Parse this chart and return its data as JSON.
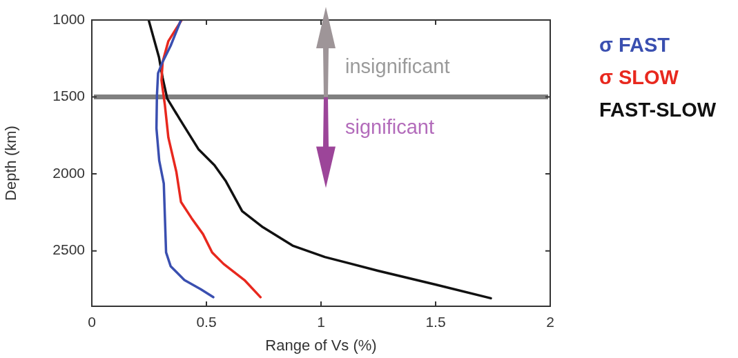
{
  "chart_data": {
    "type": "line",
    "xlabel": "Range of Vs (%)",
    "ylabel": "Depth (km)",
    "xlim": [
      0,
      2
    ],
    "xticks": [
      0,
      0.5,
      1,
      1.5,
      2
    ],
    "ylim": [
      2860,
      1000
    ],
    "yticks": [
      1000,
      1500,
      2000,
      2500
    ],
    "series": [
      {
        "name": "σ FAST",
        "color": "#3a4fb0",
        "x": [
          0.389,
          0.344,
          0.309,
          0.289,
          0.284,
          0.282,
          0.294,
          0.314,
          0.319,
          0.324,
          0.344,
          0.404,
          0.475,
          0.53
        ],
        "values": [
          1000,
          1167,
          1272,
          1346,
          1496,
          1704,
          1913,
          2063,
          2287,
          2510,
          2600,
          2690,
          2749,
          2801
        ]
      },
      {
        "name": "σ SLOW",
        "color": "#e8281e",
        "x": [
          0.392,
          0.334,
          0.309,
          0.304,
          0.319,
          0.334,
          0.369,
          0.389,
          0.435,
          0.485,
          0.525,
          0.575,
          0.666,
          0.736
        ],
        "values": [
          1000,
          1137,
          1272,
          1391,
          1555,
          1764,
          1988,
          2182,
          2287,
          2391,
          2510,
          2585,
          2690,
          2801
        ]
      },
      {
        "name": "FAST-SLOW",
        "color": "#111111",
        "x": [
          0.248,
          0.293,
          0.309,
          0.329,
          0.384,
          0.465,
          0.535,
          0.585,
          0.656,
          0.746,
          0.876,
          1.017,
          1.248,
          1.499,
          1.741
        ],
        "values": [
          1000,
          1242,
          1376,
          1510,
          1645,
          1839,
          1943,
          2048,
          2242,
          2346,
          2466,
          2540,
          2629,
          2719,
          2808
        ]
      }
    ],
    "ref_lines": [
      {
        "axis": "y",
        "value": 1500,
        "color": "#808080"
      }
    ],
    "annotations": [
      "insignificant",
      "significant"
    ],
    "legend": "top right",
    "grid": false,
    "marker": "none",
    "line_style": "solid"
  }
}
